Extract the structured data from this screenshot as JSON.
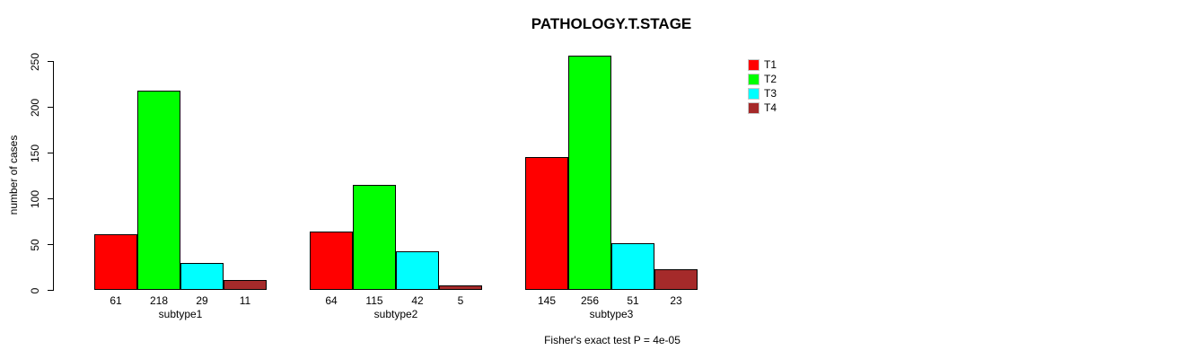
{
  "title": "PATHOLOGY.T.STAGE",
  "ylabel": "number of cases",
  "footer": "Fisher's exact test P = 4e-05",
  "colors": {
    "background": "#FFFFFF",
    "axis": "#000000",
    "text": "#000000",
    "t1": "#FF0000",
    "t2": "#00FF00",
    "t3": "#00FFFF",
    "t4": "#A52A2A"
  },
  "chart_data": {
    "type": "bar",
    "title": "PATHOLOGY.T.STAGE",
    "xlabel": "",
    "ylabel": "number of cases",
    "categories": [
      "subtype1",
      "subtype2",
      "subtype3"
    ],
    "series": [
      {
        "name": "T1",
        "color": "#FF0000",
        "values": [
          61,
          64,
          145
        ]
      },
      {
        "name": "T2",
        "color": "#00FF00",
        "values": [
          218,
          115,
          256
        ]
      },
      {
        "name": "T3",
        "color": "#00FFFF",
        "values": [
          29,
          42,
          51
        ]
      },
      {
        "name": "T4",
        "color": "#A52A2A",
        "values": [
          11,
          5,
          23
        ]
      }
    ],
    "bar_value_labels": [
      [
        61,
        218,
        29,
        11
      ],
      [
        64,
        115,
        42,
        5
      ],
      [
        145,
        256,
        51,
        23
      ]
    ],
    "yticks": [
      0,
      50,
      100,
      150,
      200,
      250
    ],
    "ylim": [
      0,
      260
    ],
    "grid": false,
    "legend_position": "right-inside",
    "legend_entries": [
      "T1",
      "T2",
      "T3",
      "T4"
    ],
    "annotation": "Fisher's exact test P = 4e-05"
  }
}
